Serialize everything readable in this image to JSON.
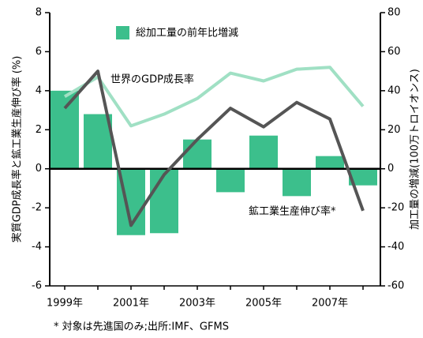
{
  "chart_data": {
    "type": "bar-line",
    "categories": [
      "1999年",
      null,
      "2001年",
      null,
      "2003年",
      null,
      "2005年",
      null,
      "2007年",
      null
    ],
    "series": [
      {
        "name": "総加工量の前年比増減",
        "type": "bar",
        "axis": "y2",
        "color": "#3cbf8c",
        "values": [
          40,
          28,
          -34,
          -33,
          15,
          -12,
          17,
          -14,
          6.5,
          -8.5
        ]
      },
      {
        "name": "世界のGDP成長率",
        "type": "line",
        "color": "#a0e0c4",
        "values": [
          3.7,
          4.7,
          2.2,
          2.8,
          3.6,
          4.9,
          4.5,
          5.1,
          5.2,
          3.2
        ]
      },
      {
        "name": "鉱工業生産伸び率*",
        "type": "line",
        "color": "#555555",
        "values": [
          3.1,
          5.0,
          -2.9,
          -0.3,
          1.5,
          3.1,
          2.15,
          3.4,
          2.55,
          -2.15
        ]
      }
    ],
    "ylabel": "実質GDP成長率と鉱工業生産伸び率 (%)",
    "y2label": "加工量の増減(100万トロイオンス)",
    "ylim": [
      -6,
      8
    ],
    "yticks": [
      -6,
      -4,
      -2,
      0,
      2,
      4,
      6,
      8
    ],
    "y2lim": [
      -60,
      80
    ],
    "y2ticks": [
      -60,
      -40,
      -20,
      0,
      20,
      40,
      60,
      80
    ],
    "footnote": "* 対象は先進国のみ;出所:IMF、GFMS"
  }
}
